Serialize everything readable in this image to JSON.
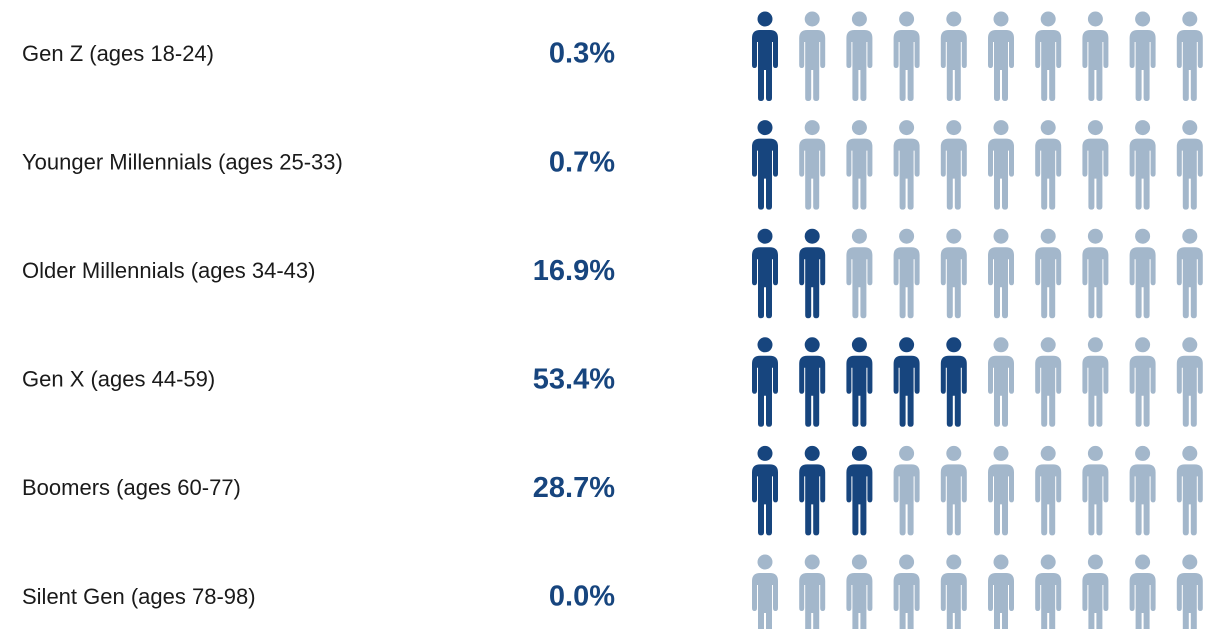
{
  "chart_data": {
    "type": "pictograph",
    "categories": [
      "Gen Z (ages 18-24)",
      "Younger Millennials (ages 25-33)",
      "Older Millennials (ages 34-43)",
      "Gen X (ages 44-59)",
      "Boomers (ages 60-77)",
      "Silent Gen (ages 78-98)"
    ],
    "values": [
      0.3,
      0.7,
      16.9,
      53.4,
      28.7,
      0.0
    ],
    "value_labels": [
      "0.3%",
      "0.7%",
      "16.9%",
      "53.4%",
      "28.7%",
      "0.0%"
    ],
    "filled_icons": [
      1,
      1,
      2,
      5,
      3,
      0
    ],
    "icons_per_row": 10,
    "color": "#17457e",
    "empty_color": "#a3b7cb"
  }
}
